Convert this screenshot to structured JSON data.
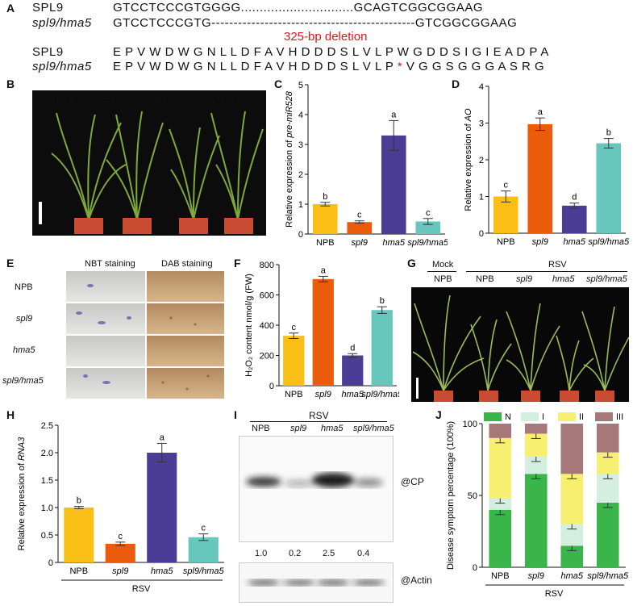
{
  "panel_labels": {
    "A": "A",
    "B": "B",
    "C": "C",
    "D": "D",
    "E": "E",
    "F": "F",
    "G": "G",
    "H": "H",
    "I": "I",
    "J": "J"
  },
  "panelA": {
    "row1_name": "SPL9",
    "row1_seq": "GTCCTCCCGTGGGG..............................GCAGTCGGCGGAAG",
    "row2_name": "spl9/hma5",
    "row2_seq": "GTCCTCCCGTG----------------------------------------------GTCGGCGGAAG",
    "deletion_label": "325-bp deletion",
    "row3_name": "SPL9",
    "row3_seq": "E P V W D W G N L L D F A V H D D D S L V L P W G D D S I G I E A D P A",
    "row4_name": "spl9/hma5",
    "row4_seq_a": "E P V W D W G N L L D F A V H D D D S L V L P ",
    "row4_star": "*",
    "row4_seq_b": " V G G S G G G A S R G"
  },
  "panelB": {
    "labels": [
      "NPB",
      "spl9",
      "hma5",
      "spl9/hma5"
    ]
  },
  "panelE": {
    "col1": "NBT staining",
    "col2": "DAB staining",
    "rows": [
      "NPB",
      "spl9",
      "hma5",
      "spl9/hma5"
    ]
  },
  "panelG": {
    "mock": "Mock",
    "rsv": "RSV",
    "labels": [
      "NPB",
      "NPB",
      "spl9",
      "hma5",
      "spl9/hma5"
    ]
  },
  "panelI": {
    "rsv": "RSV",
    "lanes": [
      "NPB",
      "spl9",
      "hma5",
      "spl9/hma5"
    ],
    "cp_label": "@CP",
    "actin_label": "@Actin",
    "quant": [
      "1.0",
      "0.2",
      "2.5",
      "0.4"
    ]
  },
  "colors": {
    "npb": "#f9bf17",
    "spl9": "#ea5b0c",
    "hma5": "#4b3c96",
    "double": "#67c7bd",
    "N": "#3ab54a",
    "I": "#d4eee0",
    "II": "#f6ef6f",
    "III": "#a7787a"
  },
  "chart_data": [
    {
      "id": "C",
      "type": "bar",
      "categories": [
        "NPB",
        "spl9",
        "hma5",
        "spl9/hma5"
      ],
      "values": [
        1.0,
        0.4,
        3.3,
        0.42
      ],
      "errors": [
        0.06,
        0.04,
        0.5,
        0.1
      ],
      "letters": [
        "b",
        "c",
        "a",
        "c"
      ],
      "ylabel_prefix": "Relative expression of ",
      "ylabel_gene": "pre-miR528",
      "ylim": [
        0,
        5
      ],
      "yticks": [
        "0",
        "1",
        "2",
        "3",
        "4",
        "5"
      ]
    },
    {
      "id": "D",
      "type": "bar",
      "categories": [
        "NPB",
        "spl9",
        "hma5",
        "spl9/hma5"
      ],
      "values": [
        1.0,
        2.97,
        0.75,
        2.45
      ],
      "errors": [
        0.15,
        0.17,
        0.07,
        0.13
      ],
      "letters": [
        "c",
        "a",
        "d",
        "b"
      ],
      "ylabel_prefix": "Relative expression of ",
      "ylabel_gene": "AO",
      "ylim": [
        0,
        4
      ],
      "yticks": [
        "0",
        "1",
        "2",
        "3",
        "4"
      ]
    },
    {
      "id": "F",
      "type": "bar",
      "categories": [
        "NPB",
        "spl9",
        "hma5",
        "spl9/hma5"
      ],
      "values": [
        330,
        705,
        200,
        500
      ],
      "errors": [
        18,
        18,
        12,
        22
      ],
      "letters": [
        "c",
        "a",
        "d",
        "b"
      ],
      "ylabel": "H₂O₂ content nmol/g (FW)",
      "ylim": [
        0,
        800
      ],
      "yticks": [
        "0",
        "200",
        "400",
        "600",
        "800"
      ]
    },
    {
      "id": "H",
      "type": "bar",
      "categories": [
        "NPB",
        "spl9",
        "hma5",
        "spl9/hma5"
      ],
      "values": [
        1.0,
        0.34,
        2.0,
        0.46
      ],
      "errors": [
        0.02,
        0.03,
        0.17,
        0.06
      ],
      "letters": [
        "b",
        "c",
        "a",
        "c"
      ],
      "ylabel_prefix": "Relative expression of ",
      "ylabel_gene": "RNA3",
      "ylim": [
        0,
        2.5
      ],
      "yticks": [
        "0",
        "0.5",
        "1.0",
        "1.5",
        "2.0",
        "2.5"
      ],
      "group_label": "RSV"
    },
    {
      "id": "J",
      "type": "stacked_bar",
      "categories": [
        "NPB",
        "spl9",
        "hma5",
        "spl9/hma5"
      ],
      "series": [
        {
          "name": "N",
          "values": [
            40,
            65,
            15,
            45
          ]
        },
        {
          "name": "I",
          "values": [
            8,
            12,
            15,
            20
          ]
        },
        {
          "name": "II",
          "values": [
            42,
            16,
            35,
            15
          ]
        },
        {
          "name": "III",
          "values": [
            10,
            7,
            35,
            20
          ]
        }
      ],
      "ylabel": "Disease symptom percentage (100%)",
      "ylim": [
        0,
        100
      ],
      "yticks": [
        "0",
        "50",
        "100"
      ],
      "group_label": "RSV"
    }
  ]
}
